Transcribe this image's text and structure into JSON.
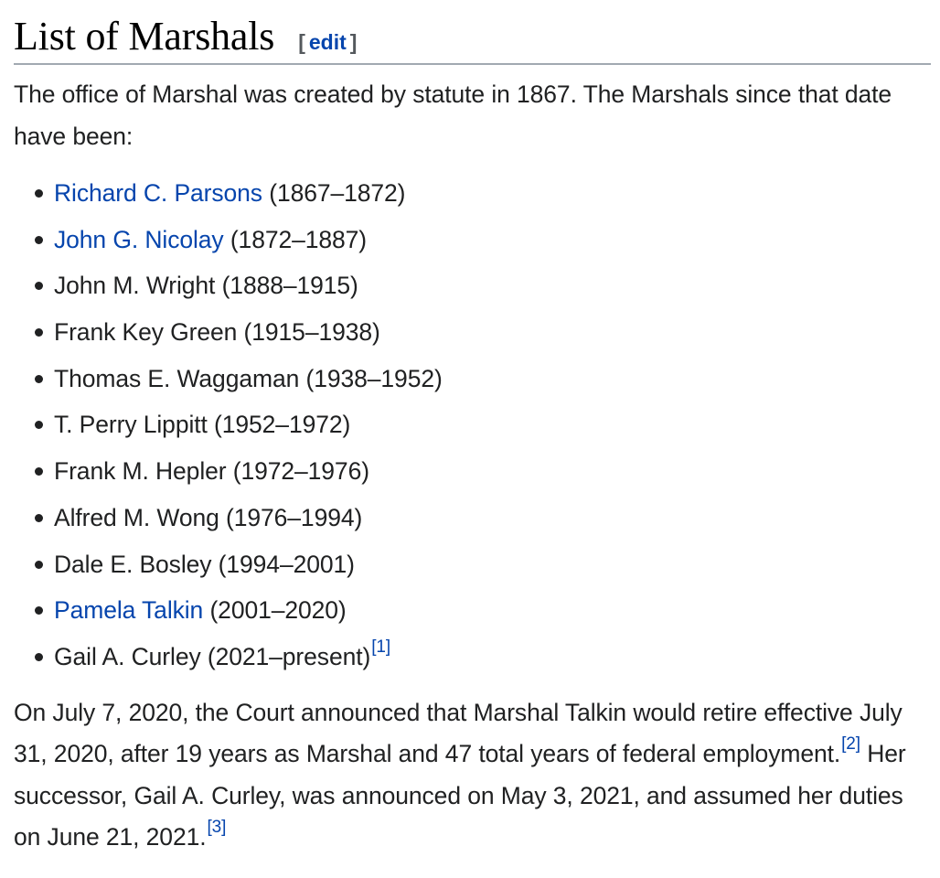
{
  "section": {
    "title": "List of Marshals",
    "edit_open": "[",
    "edit_label": "edit",
    "edit_close": "]"
  },
  "intro": "The office of Marshal was created by statute in 1867. The Marshals since that date have been:",
  "marshals": [
    {
      "name": "Richard C. Parsons",
      "years": "(1867–1872)",
      "linked": true
    },
    {
      "name": "John G. Nicolay",
      "years": "(1872–1887)",
      "linked": true
    },
    {
      "name": "John M. Wright",
      "years": "(1888–1915)",
      "linked": false
    },
    {
      "name": "Frank Key Green",
      "years": "(1915–1938)",
      "linked": false
    },
    {
      "name": "Thomas E. Waggaman",
      "years": "(1938–1952)",
      "linked": false
    },
    {
      "name": "T. Perry Lippitt",
      "years": "(1952–1972)",
      "linked": false
    },
    {
      "name": "Frank M. Hepler",
      "years": "(1972–1976)",
      "linked": false
    },
    {
      "name": "Alfred M. Wong",
      "years": "(1976–1994)",
      "linked": false
    },
    {
      "name": "Dale E. Bosley",
      "years": "(1994–2001)",
      "linked": false
    },
    {
      "name": "Pamela Talkin",
      "years": "(2001–2020)",
      "linked": true
    },
    {
      "name": "Gail A. Curley",
      "years": "(2021–present)",
      "linked": false,
      "ref": "[1]"
    }
  ],
  "closing": {
    "part1": "On July 7, 2020, the Court announced that Marshal Talkin would retire effective July 31, 2020, after 19 years as Marshal and 47 total years of federal employment.",
    "ref1": "[2]",
    "part2": " Her successor, Gail A. Curley, was announced on May 3, 2021, and assumed her duties on June 21, 2021.",
    "ref2": "[3]"
  },
  "colors": {
    "text": "#202122",
    "link": "#0645ad",
    "heading_rule": "#a2a9b1"
  }
}
